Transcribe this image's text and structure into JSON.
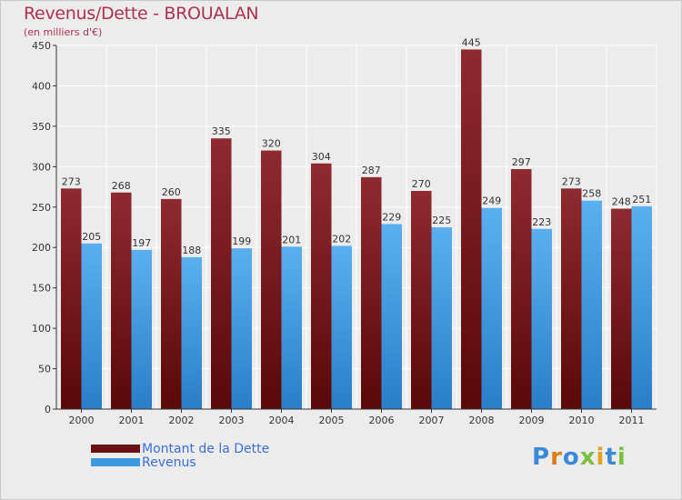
{
  "chart_data": {
    "type": "bar",
    "title": "Revenus/Dette - BROUALAN",
    "subtitle": "(en milliers d'€)",
    "xlabel": "",
    "ylabel": "",
    "ylim": [
      0,
      450
    ],
    "yticks": [
      0,
      50,
      100,
      150,
      200,
      250,
      300,
      350,
      400,
      450
    ],
    "categories": [
      "2000",
      "2001",
      "2002",
      "2003",
      "2004",
      "2005",
      "2006",
      "2007",
      "2008",
      "2009",
      "2010",
      "2011"
    ],
    "series": [
      {
        "name": "Montant de la Dette",
        "color": "#7a1a1e",
        "values": [
          273,
          268,
          260,
          335,
          320,
          304,
          287,
          270,
          445,
          297,
          273,
          248
        ]
      },
      {
        "name": "Revenus",
        "color": "#3d9ae0",
        "values": [
          205,
          197,
          188,
          199,
          201,
          202,
          229,
          225,
          249,
          223,
          258,
          251
        ]
      }
    ],
    "grid": true,
    "legend": "bottom-left"
  },
  "brand": {
    "letters": [
      {
        "ch": "P",
        "color": "#3a8ad8"
      },
      {
        "ch": "r",
        "color": "#e07a1a"
      },
      {
        "ch": "o",
        "color": "#3a8ad8"
      },
      {
        "ch": "x",
        "color": "#7ac142"
      },
      {
        "ch": "i",
        "color": "#e0a020"
      },
      {
        "ch": "t",
        "color": "#3a8ad8"
      },
      {
        "ch": "i",
        "color": "#7ac142"
      }
    ]
  }
}
